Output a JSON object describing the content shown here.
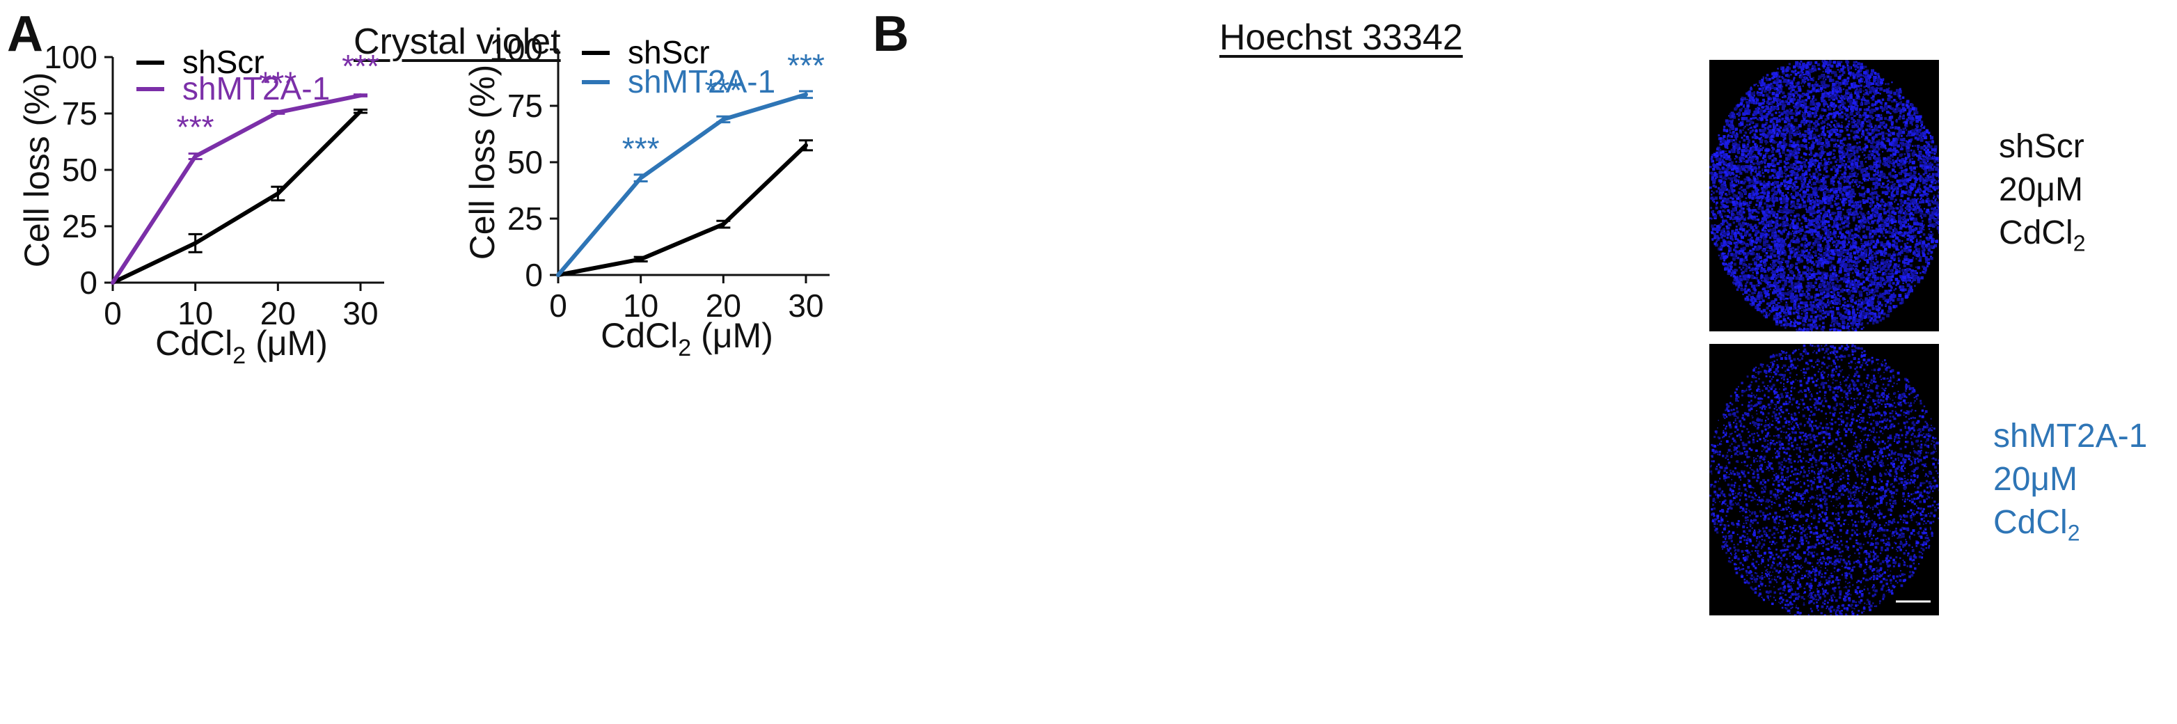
{
  "panels": {
    "a": {
      "letter": "A"
    },
    "b": {
      "letter": "B"
    }
  },
  "chart_data": [
    {
      "type": "line",
      "title": "Crystal violet",
      "xlabel": "CdCl",
      "xlabel_sub": "2",
      "xlabel_unit": " (μM)",
      "ylabel": "Cell loss (%)",
      "x": [
        0,
        10,
        20,
        30
      ],
      "xlim": [
        0,
        30
      ],
      "ylim": [
        0,
        100
      ],
      "xticks": [
        0,
        10,
        20,
        30
      ],
      "yticks": [
        0,
        25,
        50,
        75,
        100
      ],
      "grid": false,
      "legend": "top-left",
      "series": [
        {
          "name": "shScr",
          "color": "#000000",
          "values": [
            0,
            17.5,
            39.5,
            76
          ],
          "errors": [
            0,
            4,
            3,
            0.7
          ]
        },
        {
          "name": "shMT2A-1",
          "color": "#7B2FA8",
          "values": [
            0,
            56,
            75.5,
            83
          ],
          "errors": [
            0,
            1.2,
            0.6,
            0.4
          ]
        }
      ],
      "annotations": [
        {
          "text": "***",
          "x": 10,
          "y": 56,
          "color": "#7B2FA8"
        },
        {
          "text": "***",
          "x": 20,
          "y": 75.5,
          "color": "#7B2FA8"
        },
        {
          "text": "***",
          "x": 30,
          "y": 83,
          "color": "#7B2FA8"
        }
      ]
    },
    {
      "type": "line",
      "title": "Hoechst 33342",
      "xlabel": "CdCl",
      "xlabel_sub": "2",
      "xlabel_unit": " (μM)",
      "ylabel": "Cell loss (%)",
      "x": [
        0,
        10,
        20,
        30
      ],
      "xlim": [
        0,
        30
      ],
      "ylim": [
        0,
        100
      ],
      "xticks": [
        0,
        10,
        20,
        30
      ],
      "yticks": [
        0,
        25,
        50,
        75,
        100
      ],
      "grid": false,
      "legend": "top-left",
      "series": [
        {
          "name": "shScr",
          "color": "#000000",
          "values": [
            0,
            7,
            22.5,
            57.5
          ],
          "errors": [
            0,
            1,
            1.5,
            2.2
          ]
        },
        {
          "name": "shMT2A-1",
          "color": "#2E75B6",
          "values": [
            0,
            43,
            69,
            80
          ],
          "errors": [
            0,
            1.5,
            1.3,
            1.5
          ]
        }
      ],
      "annotations": [
        {
          "text": "***",
          "x": 10,
          "y": 43,
          "color": "#2E75B6"
        },
        {
          "text": "***",
          "x": 20,
          "y": 69,
          "color": "#2E75B6"
        },
        {
          "text": "***",
          "x": 30,
          "y": 80,
          "color": "#2E75B6"
        }
      ]
    }
  ],
  "micrographs": [
    {
      "line1": "shScr",
      "line2": "20μM",
      "line3_main": "CdCl",
      "line3_sub": "2",
      "color": "#000000"
    },
    {
      "line1": "shMT2A-1",
      "line2": "20μM",
      "line3_main": "CdCl",
      "line3_sub": "2",
      "color": "#2E75B6"
    }
  ],
  "colors": {
    "stain": "#1a1aff"
  }
}
